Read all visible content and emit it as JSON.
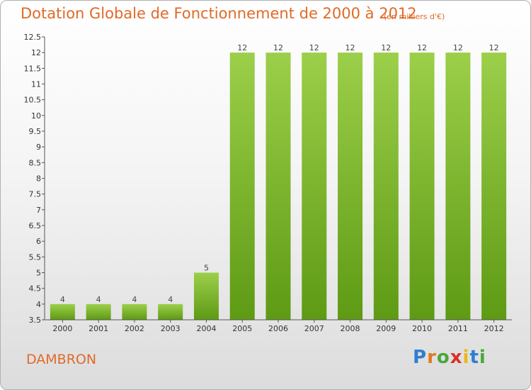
{
  "chart_data": {
    "type": "bar",
    "title": "Dotation Globale de Fonctionnement de 2000 à 2012",
    "subtitle": "(en milliers d'€)",
    "categories": [
      "2000",
      "2001",
      "2002",
      "2003",
      "2004",
      "2005",
      "2006",
      "2007",
      "2008",
      "2009",
      "2010",
      "2011",
      "2012"
    ],
    "values": [
      4,
      4,
      4,
      4,
      5,
      12,
      12,
      12,
      12,
      12,
      12,
      12,
      12
    ],
    "data_labels": [
      "4",
      "4",
      "4",
      "4",
      "5",
      "12",
      "12",
      "12",
      "12",
      "12",
      "12",
      "12",
      "12"
    ],
    "ylim": [
      3.5,
      12.5
    ],
    "yticks": [
      3.5,
      4,
      4.5,
      5,
      5.5,
      6,
      6.5,
      7,
      7.5,
      8,
      8.5,
      9,
      9.5,
      10,
      10.5,
      11,
      11.5,
      12,
      12.5
    ],
    "ytick_labels": [
      "3.5",
      "4",
      "4.5",
      "5",
      "5.5",
      "6",
      "6.5",
      "7",
      "7.5",
      "8",
      "8.5",
      "9",
      "9.5",
      "10",
      "10.5",
      "11",
      "11.5",
      "12",
      "12.5"
    ],
    "grid": false,
    "bar_color_top": "#9ccf4a",
    "bar_color_bottom": "#5e9a14"
  },
  "commune_name": "DAMBRON",
  "logo": {
    "letters": [
      "P",
      "r",
      "o",
      "x",
      "i",
      "t",
      "i"
    ],
    "colors": [
      "#2f7fd0",
      "#e07a1c",
      "#49a83a",
      "#d8302a",
      "#e8b81c",
      "#2f7fd0",
      "#49a83a"
    ]
  },
  "colors": {
    "title": "#e06a28",
    "axis": "#555555"
  }
}
